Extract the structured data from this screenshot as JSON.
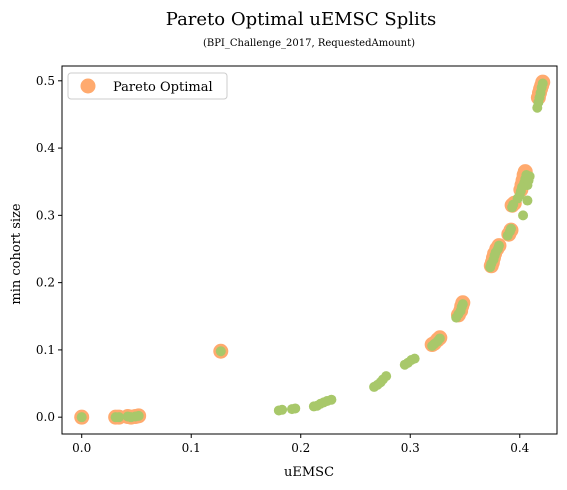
{
  "chart_data": {
    "type": "scatter",
    "title": "Pareto Optimal uEMSC Splits",
    "subtitle": "(BPI_Challenge_2017, RequestedAmount)",
    "xlabel": "uEMSC",
    "ylabel": "min cohort size",
    "xlim": [
      -0.018,
      0.434
    ],
    "ylim": [
      -0.025,
      0.522
    ],
    "xticks": [
      "0.0",
      "0.1",
      "0.2",
      "0.3",
      "0.4"
    ],
    "yticks": [
      "0.0",
      "0.1",
      "0.2",
      "0.3",
      "0.4",
      "0.5"
    ],
    "grid": false,
    "legend_position": "top-left",
    "series": [
      {
        "name": "Pareto Optimal",
        "color": "#ffaa6e",
        "marker_size": "large",
        "points": [
          [
            0.0,
            0.0
          ],
          [
            0.031,
            0.0
          ],
          [
            0.034,
            0.0
          ],
          [
            0.042,
            0.001
          ],
          [
            0.045,
            0.0
          ],
          [
            0.049,
            0.001
          ],
          [
            0.052,
            0.002
          ],
          [
            0.127,
            0.098
          ],
          [
            0.32,
            0.108
          ],
          [
            0.322,
            0.11
          ],
          [
            0.325,
            0.115
          ],
          [
            0.327,
            0.118
          ],
          [
            0.344,
            0.152
          ],
          [
            0.346,
            0.158
          ],
          [
            0.347,
            0.165
          ],
          [
            0.348,
            0.17
          ],
          [
            0.374,
            0.225
          ],
          [
            0.375,
            0.23
          ],
          [
            0.376,
            0.237
          ],
          [
            0.377,
            0.243
          ],
          [
            0.379,
            0.25
          ],
          [
            0.381,
            0.255
          ],
          [
            0.39,
            0.272
          ],
          [
            0.392,
            0.278
          ],
          [
            0.393,
            0.315
          ],
          [
            0.395,
            0.318
          ],
          [
            0.401,
            0.338
          ],
          [
            0.402,
            0.345
          ],
          [
            0.403,
            0.352
          ],
          [
            0.404,
            0.36
          ],
          [
            0.405,
            0.365
          ],
          [
            0.417,
            0.475
          ],
          [
            0.418,
            0.482
          ],
          [
            0.419,
            0.488
          ],
          [
            0.42,
            0.493
          ],
          [
            0.421,
            0.498
          ]
        ]
      },
      {
        "name": "",
        "color": "#a8c86a",
        "marker_size": "small",
        "points": [
          [
            0.0,
            0.0
          ],
          [
            0.031,
            0.0
          ],
          [
            0.034,
            0.0
          ],
          [
            0.042,
            0.001
          ],
          [
            0.045,
            0.0
          ],
          [
            0.049,
            0.001
          ],
          [
            0.052,
            0.002
          ],
          [
            0.127,
            0.098
          ],
          [
            0.18,
            0.01
          ],
          [
            0.183,
            0.011
          ],
          [
            0.192,
            0.012
          ],
          [
            0.195,
            0.013
          ],
          [
            0.212,
            0.016
          ],
          [
            0.215,
            0.017
          ],
          [
            0.218,
            0.02
          ],
          [
            0.221,
            0.022
          ],
          [
            0.224,
            0.024
          ],
          [
            0.228,
            0.026
          ],
          [
            0.267,
            0.045
          ],
          [
            0.27,
            0.048
          ],
          [
            0.273,
            0.052
          ],
          [
            0.275,
            0.056
          ],
          [
            0.278,
            0.061
          ],
          [
            0.295,
            0.078
          ],
          [
            0.298,
            0.081
          ],
          [
            0.301,
            0.085
          ],
          [
            0.304,
            0.087
          ],
          [
            0.32,
            0.106
          ],
          [
            0.322,
            0.109
          ],
          [
            0.325,
            0.113
          ],
          [
            0.327,
            0.117
          ],
          [
            0.342,
            0.148
          ],
          [
            0.344,
            0.153
          ],
          [
            0.346,
            0.158
          ],
          [
            0.347,
            0.164
          ],
          [
            0.348,
            0.168
          ],
          [
            0.373,
            0.223
          ],
          [
            0.374,
            0.228
          ],
          [
            0.376,
            0.234
          ],
          [
            0.377,
            0.24
          ],
          [
            0.378,
            0.245
          ],
          [
            0.38,
            0.25
          ],
          [
            0.381,
            0.255
          ],
          [
            0.389,
            0.27
          ],
          [
            0.391,
            0.276
          ],
          [
            0.392,
            0.28
          ],
          [
            0.393,
            0.312
          ],
          [
            0.394,
            0.316
          ],
          [
            0.398,
            0.325
          ],
          [
            0.4,
            0.33
          ],
          [
            0.401,
            0.336
          ],
          [
            0.402,
            0.342
          ],
          [
            0.403,
            0.3
          ],
          [
            0.404,
            0.348
          ],
          [
            0.405,
            0.354
          ],
          [
            0.406,
            0.36
          ],
          [
            0.407,
            0.322
          ],
          [
            0.407,
            0.345
          ],
          [
            0.408,
            0.352
          ],
          [
            0.409,
            0.358
          ],
          [
            0.416,
            0.46
          ],
          [
            0.417,
            0.468
          ],
          [
            0.418,
            0.475
          ],
          [
            0.419,
            0.482
          ],
          [
            0.42,
            0.49
          ],
          [
            0.421,
            0.496
          ]
        ]
      }
    ]
  }
}
